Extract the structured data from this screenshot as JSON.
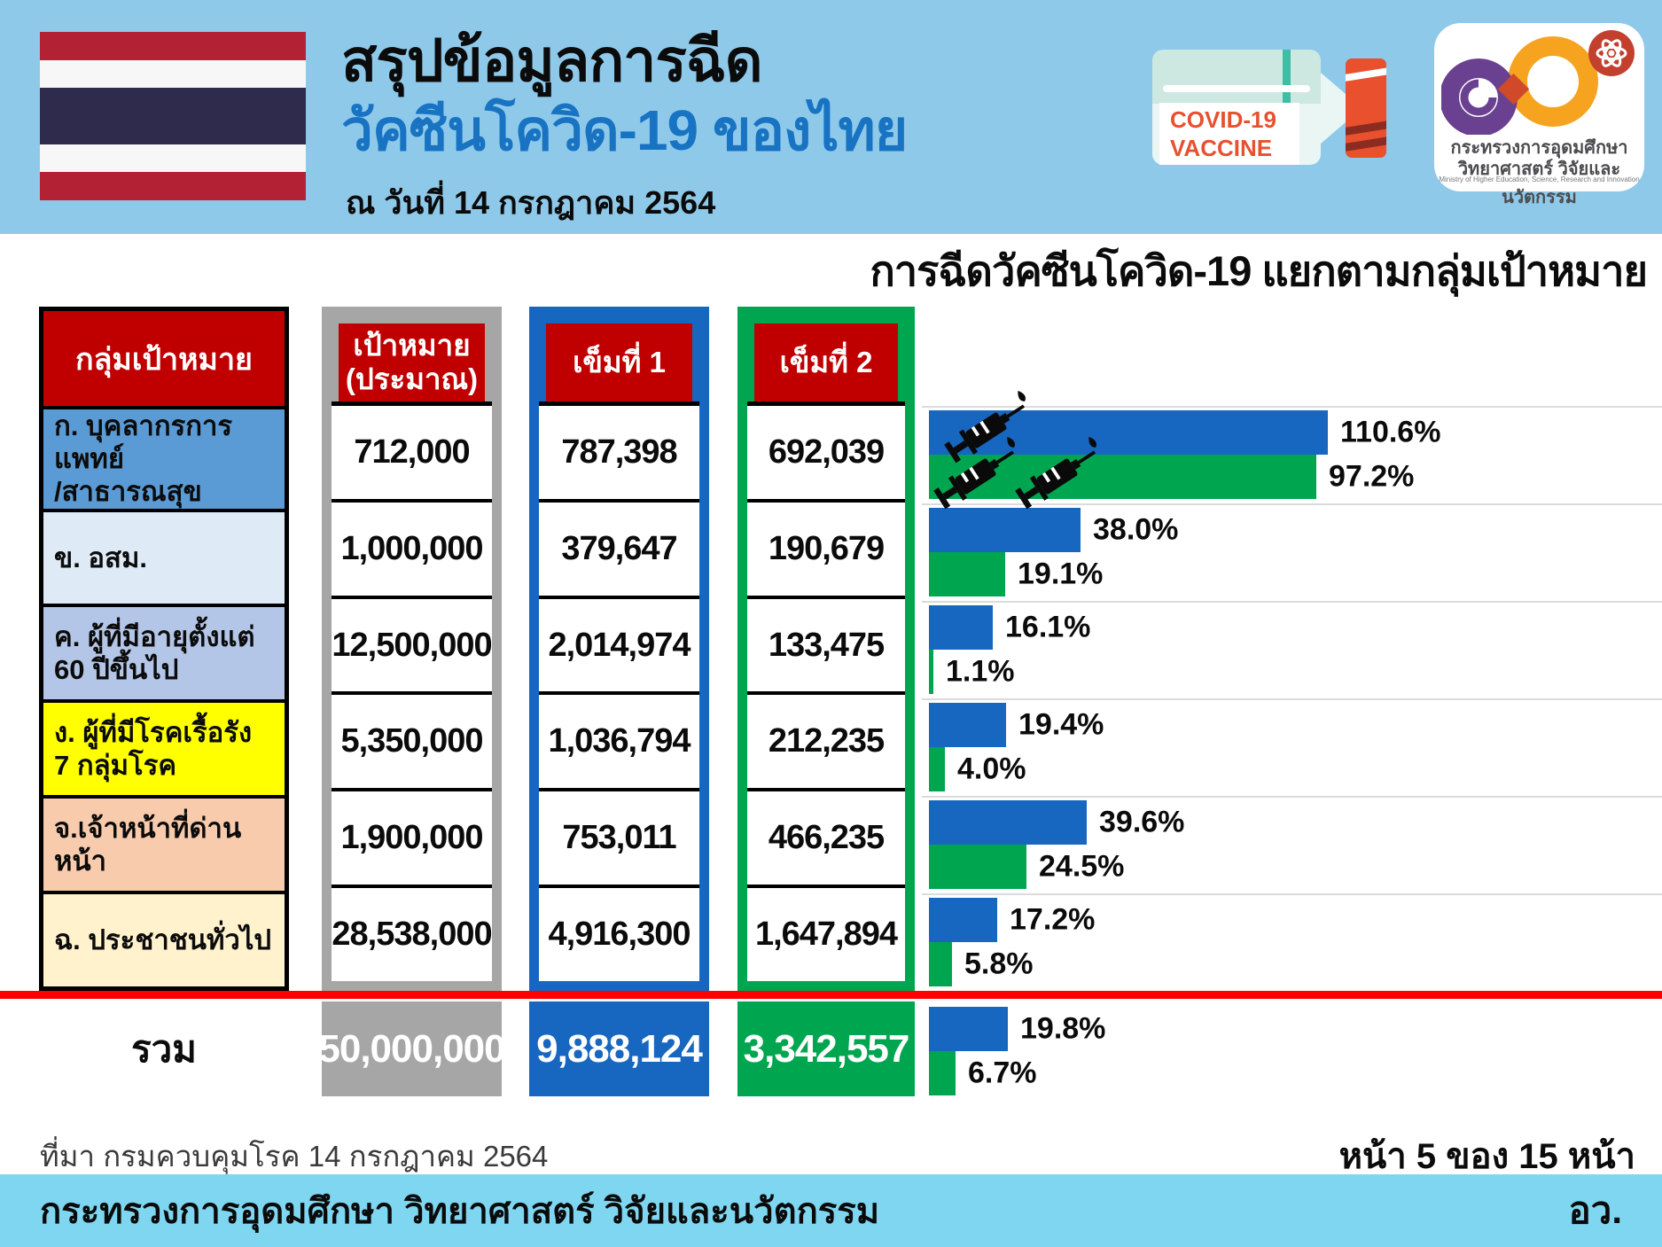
{
  "header": {
    "title_line1": "สรุปข้อมูลการฉีด",
    "title_line2": "วัคซีนโควิด-19 ของไทย",
    "date_line": "ณ วันที่ 14 กรกฎาคม 2564",
    "vial": {
      "label": "COVID-19\nVACCINE"
    },
    "logo": {
      "thai_line1": "กระทรวงการอุดมศึกษา",
      "thai_line2": "วิทยาศาสตร์ วิจัยและนวัตกรรม",
      "english_line": "Ministry of Higher Education, Science, Research and Innovation"
    }
  },
  "chart": {
    "title": "การฉีดวัคซีนโควิด-19 แยกตามกลุ่มเป้าหมาย"
  },
  "table": {
    "headers": {
      "group": "กลุ่มเป้าหมาย",
      "target": "เป้าหมาย\n(ประมาณ)",
      "dose1": "เข็มที่ 1",
      "dose2": "เข็มที่ 2"
    },
    "rows": [
      {
        "label": "ก. บุคลากรการแพทย์\n/สาธารณสุข",
        "target": "712,000",
        "dose1": "787,398",
        "dose2": "692,039",
        "color": "#5B9BD5"
      },
      {
        "label": "ข. อสม.",
        "target": "1,000,000",
        "dose1": "379,647",
        "dose2": "190,679",
        "color": "#DEEBF7"
      },
      {
        "label": "ค. ผู้ที่มีอายุตั้งแต่\n60 ปีขึ้นไป",
        "target": "12,500,000",
        "dose1": "2,014,974",
        "dose2": "133,475",
        "color": "#B4C6E7"
      },
      {
        "label": "ง. ผู้ที่มีโรคเรื้อรัง\n7 กลุ่มโรค",
        "target": "5,350,000",
        "dose1": "1,036,794",
        "dose2": "212,235",
        "color": "#FFFF00"
      },
      {
        "label": "จ.เจ้าหน้าที่ด่านหน้า",
        "target": "1,900,000",
        "dose1": "753,011",
        "dose2": "466,235",
        "color": "#F8CBAD"
      },
      {
        "label": "ฉ. ประชาชนทั่วไป",
        "target": "28,538,000",
        "dose1": "4,916,300",
        "dose2": "1,647,894",
        "color": "#FFF2CC"
      }
    ],
    "total": {
      "label": "รวม",
      "target": "50,000,000",
      "dose1": "9,888,124",
      "dose2": "3,342,557"
    }
  },
  "chart_data": {
    "type": "bar",
    "orientation": "horizontal",
    "title": "การฉีดวัคซีนโควิด-19 แยกตามกลุ่มเป้าหมาย",
    "unit": "%",
    "xlim": [
      0,
      100
    ],
    "clip_note": "bars above 100% are clipped at plot edge",
    "categories": [
      "ก. บุคลากรการแพทย์/สาธารณสุข",
      "ข. อสม.",
      "ค. ผู้ที่มีอายุตั้งแต่ 60 ปีขึ้นไป",
      "ง. ผู้ที่มีโรคเรื้อรัง 7 กลุ่มโรค",
      "จ.เจ้าหน้าที่ด่านหน้า",
      "ฉ. ประชาชนทั่วไป",
      "รวม"
    ],
    "series": [
      {
        "name": "เข็มที่ 1",
        "color": "#1767C0",
        "values": [
          110.6,
          38.0,
          16.1,
          19.4,
          39.6,
          17.2,
          19.8
        ]
      },
      {
        "name": "เข็มที่ 2",
        "color": "#00A64F",
        "values": [
          97.2,
          19.1,
          1.1,
          4.0,
          24.5,
          5.8,
          6.7
        ]
      }
    ]
  },
  "footer": {
    "source": "ที่มา กรมควบคุมโรค 14 กรกฎาคม 2564",
    "page": "หน้า 5 ของ 15 หน้า",
    "ministry": "กระทรวงการอุดมศึกษา วิทยาศาสตร์ วิจัยและนวัตกรรม",
    "abbrev": "อว."
  },
  "colors": {
    "header_band": "#8FC9EA",
    "bottom_band": "#7FD6F1",
    "table_header_red": "#C00000",
    "dose1_blue": "#1767C0",
    "dose2_green": "#00A64F",
    "target_gray": "#A6A6A6",
    "divider_red": "#FE0000"
  }
}
